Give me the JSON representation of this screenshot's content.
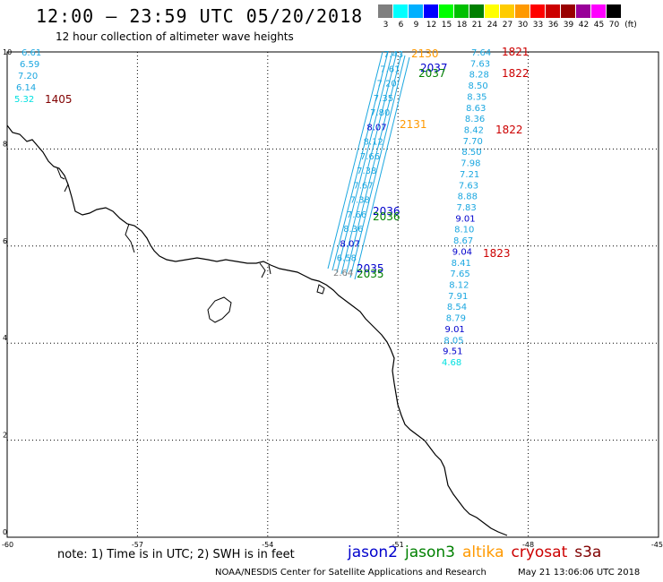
{
  "header": {
    "title": "12:00 – 23:59 UTC 05/20/2018",
    "subtitle": "12 hour collection of altimeter wave heights"
  },
  "legend": {
    "unit": "(ft)",
    "bins": [
      {
        "label": "3",
        "color": "#7f7f7f"
      },
      {
        "label": "6",
        "color": "#00ffff"
      },
      {
        "label": "9",
        "color": "#00b0ff"
      },
      {
        "label": "12",
        "color": "#0000ff"
      },
      {
        "label": "15",
        "color": "#00ff00"
      },
      {
        "label": "18",
        "color": "#00c000"
      },
      {
        "label": "21",
        "color": "#008000"
      },
      {
        "label": "24",
        "color": "#ffff00"
      },
      {
        "label": "27",
        "color": "#ffcc00"
      },
      {
        "label": "30",
        "color": "#ff9900"
      },
      {
        "label": "33",
        "color": "#ff0000"
      },
      {
        "label": "36",
        "color": "#cc0000"
      },
      {
        "label": "39",
        "color": "#990000"
      },
      {
        "label": "42",
        "color": "#990099"
      },
      {
        "label": "45",
        "color": "#ff00ff"
      },
      {
        "label": "70",
        "color": "#000000"
      }
    ]
  },
  "axes": {
    "lon_labels": [
      "-60",
      "-57",
      "-54",
      "-51",
      "-48",
      "-45"
    ],
    "lat_labels": [
      "0",
      "2",
      "4",
      "6",
      "8",
      "10"
    ]
  },
  "left_track": {
    "values": [
      "6.61",
      "6.59",
      "7.20",
      "6.14",
      "5.32"
    ],
    "time_label": "1405",
    "time_color": "#800000"
  },
  "dense_track": {
    "values": [
      "7.43",
      "7.61",
      "7.20",
      "7.35",
      "7.80",
      "8.07",
      "8.12",
      "7.66",
      "7.38",
      "7.67",
      "7.38",
      "7.66",
      "8.36",
      "8.07",
      "6.58",
      "2.64"
    ],
    "time_labels": [
      {
        "label": "2130",
        "color": "#ff9900"
      },
      {
        "label": "2037",
        "color": "#0000cc"
      },
      {
        "label": "2037",
        "color": "#008000"
      },
      {
        "label": "2131",
        "color": "#ff9900"
      },
      {
        "label": "2036",
        "color": "#0000cc"
      },
      {
        "label": "2036",
        "color": "#008000"
      },
      {
        "label": "2035",
        "color": "#0000cc"
      },
      {
        "label": "2035",
        "color": "#008000"
      }
    ]
  },
  "right_track": {
    "values": [
      "7.64",
      "7.63",
      "8.28",
      "8.50",
      "8.35",
      "8.63",
      "8.36",
      "8.42",
      "7.70",
      "8.50",
      "7.98",
      "7.21",
      "7.63",
      "8.88",
      "7.83",
      "9.01",
      "8.10",
      "8.67",
      "9.04",
      "8.41",
      "7.65",
      "8.12",
      "7.91",
      "8.54",
      "8.79",
      "9.01",
      "8.05",
      "9.51",
      "4.68"
    ],
    "time_labels": [
      {
        "label": "1821",
        "color": "#cc0000"
      },
      {
        "label": "1822",
        "color": "#cc0000"
      },
      {
        "label": "1822",
        "color": "#cc0000"
      },
      {
        "label": "1823",
        "color": "#cc0000"
      }
    ]
  },
  "footer": {
    "note": "note: 1) Time is in UTC; 2) SWH is in feet",
    "missions": [
      {
        "name": "jason2",
        "color": "#0000cc"
      },
      {
        "name": "jason3",
        "color": "#008000"
      },
      {
        "name": "altika",
        "color": "#ff9900"
      },
      {
        "name": "cryosat",
        "color": "#cc0000"
      },
      {
        "name": "s3a",
        "color": "#800000"
      }
    ],
    "credit": "NOAA/NESDIS Center for Satellite Applications and Research",
    "generated": "May 21 13:06:06 UTC 2018"
  }
}
